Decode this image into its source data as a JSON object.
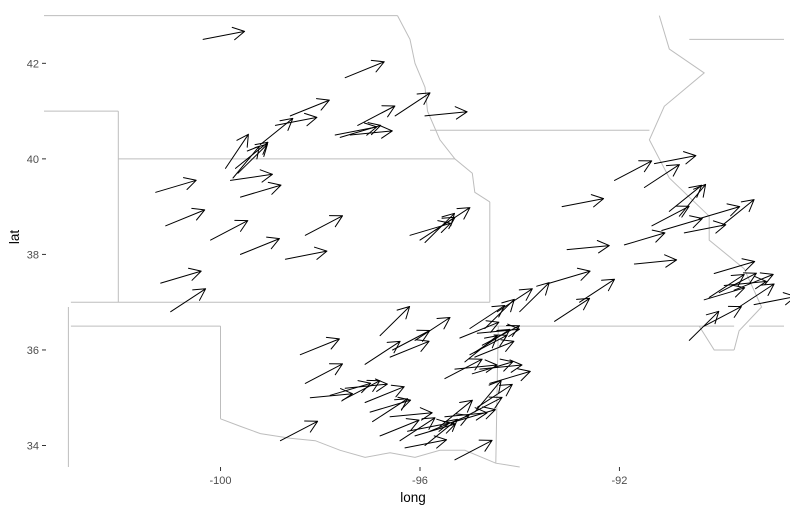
{
  "chart_data": {
    "type": "vector-field-map",
    "title": "",
    "xlabel": "long",
    "ylabel": "lat",
    "xlim": [
      -103.5,
      -88.7
    ],
    "ylim": [
      33.55,
      43.2
    ],
    "x_ticks": [
      -100,
      -96,
      -92
    ],
    "x_tick_labels": [
      "-100",
      "-96",
      "-92"
    ],
    "y_ticks": [
      34,
      36,
      38,
      40,
      42
    ],
    "y_tick_labels": [
      "34",
      "36",
      "38",
      "40",
      "42"
    ],
    "grid": false,
    "borders": [
      {
        "name": "nebraska-north",
        "points": [
          [
            -104.1,
            43.0
          ],
          [
            -96.45,
            43.0
          ]
        ]
      },
      {
        "name": "missouri-river",
        "points": [
          [
            -96.45,
            43.0
          ],
          [
            -96.2,
            42.5
          ],
          [
            -96.1,
            42.0
          ],
          [
            -95.9,
            41.5
          ],
          [
            -95.85,
            41.0
          ],
          [
            -95.6,
            40.4
          ],
          [
            -95.3,
            40.0
          ],
          [
            -94.95,
            39.7
          ],
          [
            -94.9,
            39.3
          ],
          [
            -94.6,
            39.1
          ]
        ]
      },
      {
        "name": "nebraska-kansas",
        "points": [
          [
            -102.05,
            40.0
          ],
          [
            -95.3,
            40.0
          ]
        ]
      },
      {
        "name": "colorado-east",
        "points": [
          [
            -102.05,
            41.0
          ],
          [
            -102.05,
            37.0
          ]
        ]
      },
      {
        "name": "nebraska-panhandle",
        "points": [
          [
            -104.1,
            41.0
          ],
          [
            -102.05,
            41.0
          ]
        ]
      },
      {
        "name": "kansas-oklahoma",
        "points": [
          [
            -103.0,
            37.0
          ],
          [
            -94.6,
            37.0
          ]
        ]
      },
      {
        "name": "kansas-missouri",
        "points": [
          [
            -94.6,
            39.1
          ],
          [
            -94.6,
            37.0
          ]
        ]
      },
      {
        "name": "iowa-missouri",
        "points": [
          [
            -95.8,
            40.6
          ],
          [
            -91.4,
            40.6
          ]
        ]
      },
      {
        "name": "missouri-arkansas",
        "points": [
          [
            -94.6,
            36.5
          ],
          [
            -89.7,
            36.5
          ]
        ]
      },
      {
        "name": "bootheel",
        "points": [
          [
            -90.4,
            36.5
          ],
          [
            -90.1,
            36.0
          ],
          [
            -89.7,
            36.0
          ]
        ]
      },
      {
        "name": "mississippi-river",
        "points": [
          [
            -91.2,
            43.0
          ],
          [
            -91.0,
            42.3
          ],
          [
            -90.3,
            41.8
          ],
          [
            -91.1,
            41.1
          ],
          [
            -91.4,
            40.4
          ],
          [
            -91.0,
            39.6
          ],
          [
            -90.2,
            38.8
          ],
          [
            -90.2,
            38.3
          ],
          [
            -89.5,
            37.7
          ],
          [
            -89.15,
            36.9
          ],
          [
            -89.6,
            36.4
          ],
          [
            -89.7,
            36.0
          ]
        ]
      },
      {
        "name": "wisconsin-illinois",
        "points": [
          [
            -90.6,
            42.5
          ],
          [
            -88.7,
            42.5
          ]
        ]
      },
      {
        "name": "ky-tn",
        "points": [
          [
            -89.4,
            36.5
          ],
          [
            -88.7,
            36.5
          ]
        ]
      },
      {
        "name": "oklahoma-arkansas",
        "points": [
          [
            -94.43,
            36.5
          ],
          [
            -94.45,
            35.4
          ],
          [
            -94.48,
            33.63
          ]
        ]
      },
      {
        "name": "oklahoma-panhandle",
        "points": [
          [
            -103.0,
            36.5
          ],
          [
            -100.0,
            36.5
          ]
        ]
      },
      {
        "name": "texas-panhandle-east",
        "points": [
          [
            -100.0,
            36.5
          ],
          [
            -100.0,
            34.56
          ]
        ]
      },
      {
        "name": "red-river",
        "points": [
          [
            -100.0,
            34.56
          ],
          [
            -99.6,
            34.4
          ],
          [
            -99.2,
            34.25
          ],
          [
            -98.6,
            34.15
          ],
          [
            -98.1,
            34.1
          ],
          [
            -97.6,
            33.9
          ],
          [
            -97.1,
            33.75
          ],
          [
            -96.6,
            33.85
          ],
          [
            -96.1,
            33.75
          ],
          [
            -95.6,
            33.9
          ],
          [
            -95.1,
            33.9
          ],
          [
            -94.48,
            33.63
          ],
          [
            -94.0,
            33.55
          ]
        ]
      },
      {
        "name": "new-mexico-east",
        "points": [
          [
            -103.05,
            36.9
          ],
          [
            -103.05,
            33.55
          ]
        ]
      }
    ],
    "arrows": [
      [
        -100.35,
        42.5,
        0.2,
        0.85
      ],
      [
        -97.5,
        41.7,
        0.4,
        0.85
      ],
      [
        -96.5,
        40.9,
        0.6,
        0.85
      ],
      [
        -95.9,
        40.9,
        0.1,
        0.85
      ],
      [
        -98.6,
        40.9,
        0.4,
        0.85
      ],
      [
        -99.2,
        40.3,
        0.7,
        0.85
      ],
      [
        -98.9,
        40.7,
        0.2,
        0.85
      ],
      [
        -97.7,
        40.5,
        0.2,
        0.85
      ],
      [
        -97.6,
        40.45,
        0.3,
        0.85
      ],
      [
        -97.4,
        40.5,
        0.1,
        0.85
      ],
      [
        -97.25,
        40.7,
        0.5,
        0.85
      ],
      [
        -99.75,
        39.6,
        0.9,
        0.85
      ],
      [
        -99.6,
        39.2,
        0.3,
        0.85
      ],
      [
        -99.8,
        39.55,
        0.15,
        0.85
      ],
      [
        -99.65,
        39.7,
        0.8,
        0.85
      ],
      [
        -99.9,
        39.8,
        1.0,
        0.85
      ],
      [
        -99.7,
        39.8,
        0.7,
        0.85
      ],
      [
        -101.3,
        39.3,
        0.3,
        0.85
      ],
      [
        -101.1,
        38.6,
        0.4,
        0.85
      ],
      [
        -100.2,
        38.3,
        0.5,
        0.85
      ],
      [
        -99.6,
        38.0,
        0.4,
        0.85
      ],
      [
        -98.7,
        37.9,
        0.2,
        0.85
      ],
      [
        -98.3,
        38.4,
        0.5,
        0.85
      ],
      [
        -96.2,
        38.4,
        0.3,
        0.85
      ],
      [
        -96.0,
        38.3,
        0.6,
        0.85
      ],
      [
        -95.9,
        38.25,
        0.8,
        0.85
      ],
      [
        -95.7,
        38.5,
        0.6,
        0.85
      ],
      [
        -101.2,
        37.4,
        0.3,
        0.85
      ],
      [
        -101.0,
        36.8,
        0.6,
        0.85
      ],
      [
        -98.4,
        35.9,
        0.4,
        0.85
      ],
      [
        -98.3,
        35.3,
        0.5,
        0.85
      ],
      [
        -98.2,
        35.0,
        0.1,
        0.85
      ],
      [
        -97.5,
        35.2,
        0.1,
        0.85
      ],
      [
        -97.1,
        35.7,
        0.6,
        0.85
      ],
      [
        -96.6,
        35.85,
        0.4,
        0.85
      ],
      [
        -96.8,
        36.3,
        0.8,
        0.85
      ],
      [
        -96.55,
        36.0,
        0.5,
        0.85
      ],
      [
        -96.1,
        36.2,
        0.6,
        0.85
      ],
      [
        -95.5,
        35.4,
        0.5,
        0.85
      ],
      [
        -95.3,
        35.6,
        0.1,
        0.85
      ],
      [
        -95.1,
        35.75,
        0.7,
        0.85
      ],
      [
        -95.0,
        35.9,
        0.5,
        0.85
      ],
      [
        -94.9,
        35.85,
        0.4,
        0.85
      ],
      [
        -94.95,
        35.5,
        0.3,
        0.85
      ],
      [
        -94.8,
        35.6,
        0.1,
        0.85
      ],
      [
        -94.9,
        35.95,
        0.6,
        0.85
      ],
      [
        -95.2,
        36.25,
        0.4,
        0.85
      ],
      [
        -94.75,
        36.1,
        0.5,
        0.85
      ],
      [
        -94.85,
        36.35,
        0.1,
        0.85
      ],
      [
        -95.0,
        36.45,
        0.6,
        0.85
      ],
      [
        -94.7,
        36.45,
        0.8,
        0.85
      ],
      [
        -94.9,
        34.7,
        0.9,
        0.85
      ],
      [
        -95.1,
        34.6,
        0.5,
        0.85
      ],
      [
        -94.85,
        34.8,
        0.6,
        0.85
      ],
      [
        -95.3,
        34.5,
        0.3,
        0.85
      ],
      [
        -95.6,
        34.4,
        0.7,
        0.85
      ],
      [
        -95.8,
        34.3,
        0.4,
        0.85
      ],
      [
        -95.5,
        34.6,
        0.1,
        0.85
      ],
      [
        -96.1,
        34.2,
        0.3,
        0.85
      ],
      [
        -96.25,
        34.3,
        0.2,
        0.85
      ],
      [
        -96.4,
        34.1,
        0.6,
        0.85
      ],
      [
        -96.8,
        34.2,
        0.4,
        0.85
      ],
      [
        -96.95,
        34.5,
        0.6,
        0.85
      ],
      [
        -97.0,
        34.7,
        0.3,
        0.85
      ],
      [
        -96.6,
        34.6,
        0.1,
        0.85
      ],
      [
        -95.3,
        33.7,
        0.5,
        0.85
      ],
      [
        -95.9,
        34.0,
        0.7,
        0.85
      ],
      [
        -96.3,
        33.95,
        0.2,
        0.85
      ],
      [
        -97.1,
        34.9,
        0.4,
        0.85
      ],
      [
        -97.55,
        34.95,
        0.5,
        0.85
      ],
      [
        -97.8,
        35.05,
        0.3,
        0.85
      ],
      [
        -98.8,
        34.1,
        0.5,
        0.85
      ],
      [
        -94.6,
        35.3,
        0.3,
        0.85
      ],
      [
        -94.45,
        36.8,
        0.6,
        0.85
      ],
      [
        -94.0,
        36.8,
        0.8,
        0.85
      ],
      [
        -93.3,
        36.6,
        0.6,
        0.85
      ],
      [
        -93.4,
        37.4,
        0.3,
        0.85
      ],
      [
        -92.8,
        37.0,
        0.6,
        0.85
      ],
      [
        -93.05,
        38.1,
        0.1,
        0.85
      ],
      [
        -93.15,
        39.0,
        0.2,
        0.85
      ],
      [
        -92.1,
        39.55,
        0.5,
        0.85
      ],
      [
        -91.5,
        39.4,
        0.6,
        0.85
      ],
      [
        -91.3,
        39.9,
        0.2,
        0.85
      ],
      [
        -91.9,
        38.2,
        0.3,
        0.85
      ],
      [
        -91.7,
        37.8,
        0.1,
        0.85
      ],
      [
        -91.35,
        38.6,
        0.5,
        0.85
      ],
      [
        -91.15,
        38.5,
        0.3,
        0.85
      ],
      [
        -91.0,
        38.9,
        0.7,
        0.85
      ],
      [
        -90.8,
        38.8,
        0.9,
        0.85
      ],
      [
        -90.7,
        38.45,
        0.2,
        0.85
      ],
      [
        -90.4,
        38.75,
        0.3,
        0.85
      ],
      [
        -89.95,
        38.6,
        0.7,
        0.85
      ],
      [
        -90.1,
        37.6,
        0.3,
        0.85
      ],
      [
        -90.0,
        37.2,
        0.5,
        0.85
      ],
      [
        -90.2,
        37.1,
        0.6,
        0.85
      ],
      [
        -89.9,
        37.35,
        0.1,
        0.85
      ],
      [
        -89.7,
        37.25,
        0.4,
        0.85
      ],
      [
        -90.3,
        37.05,
        0.3,
        0.85
      ],
      [
        -89.6,
        36.9,
        0.6,
        0.85
      ],
      [
        -89.3,
        36.95,
        0.2,
        0.85
      ],
      [
        -90.6,
        36.2,
        0.8,
        0.85
      ],
      [
        -90.3,
        36.5,
        0.5,
        0.85
      ]
    ]
  }
}
